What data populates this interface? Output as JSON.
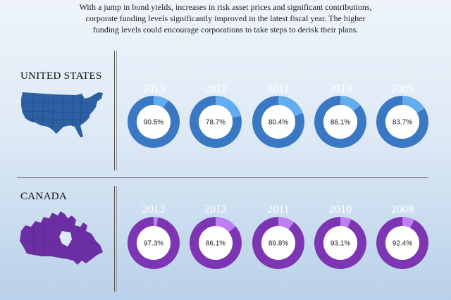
{
  "intro_text": [
    "With a jump in bond yields, increases in risk asset prices and significant contributions,",
    "corporate funding levels significantly improved in the latest fiscal year. The higher",
    "funding levels could encourage corporations to take steps to derisk their plans."
  ],
  "chart_data": [
    {
      "type": "pie",
      "title": "UNITED STATES",
      "categories": [
        "2013",
        "2012",
        "2011",
        "2010",
        "2009"
      ],
      "values": [
        90.5,
        78.7,
        80.4,
        86.1,
        83.7
      ],
      "labels": [
        "90.5%",
        "78.7%",
        "80.4%",
        "86.1%",
        "83.7%"
      ],
      "colors": {
        "filled": "#3a78c4",
        "remainder": "#63acee"
      }
    },
    {
      "type": "pie",
      "title": "CANADA",
      "categories": [
        "2013",
        "2012",
        "2011",
        "2010",
        "2009"
      ],
      "values": [
        97.3,
        86.1,
        89.8,
        93.1,
        92.4
      ],
      "labels": [
        "97.3%",
        "86.1%",
        "89.8%",
        "93.1%",
        "92.4%"
      ],
      "colors": {
        "filled": "#7d35b3",
        "remainder": "#c07ef2"
      }
    }
  ],
  "maps": {
    "us": "united-states-map-icon",
    "canada": "canada-map-icon"
  }
}
